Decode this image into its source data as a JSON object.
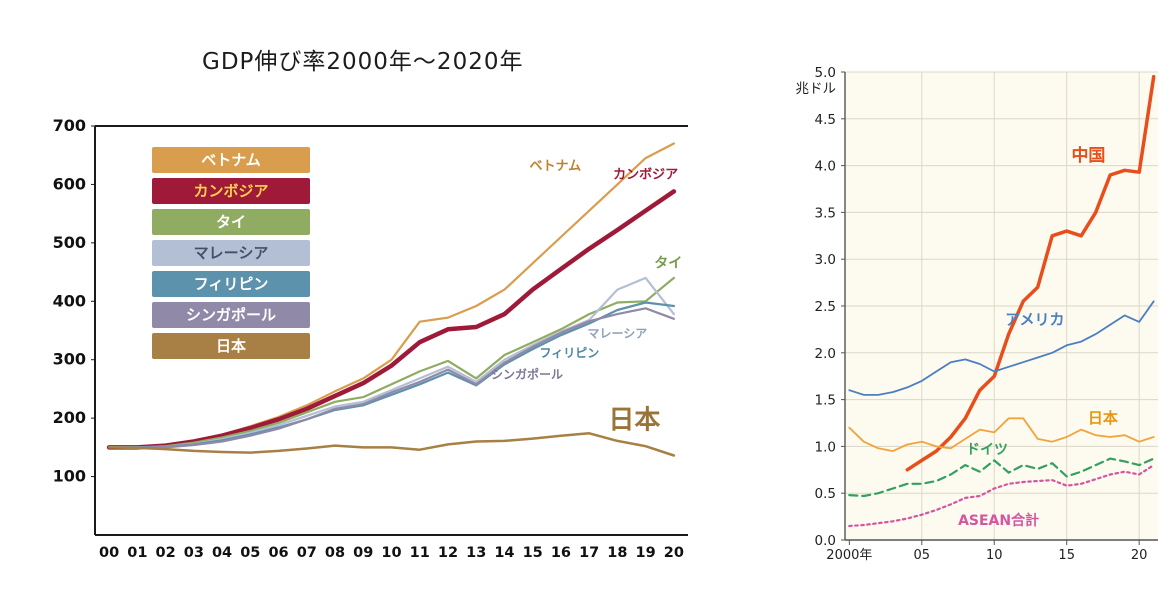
{
  "chart_data": [
    {
      "id": "gdp-growth-index",
      "type": "line",
      "title": "GDP伸び率2000年〜2020年",
      "xlabel": "",
      "ylabel": "",
      "x": [
        2000,
        2001,
        2002,
        2003,
        2004,
        2005,
        2006,
        2007,
        2008,
        2009,
        2010,
        2011,
        2012,
        2013,
        2014,
        2015,
        2016,
        2017,
        2018,
        2019,
        2020
      ],
      "xlim": [
        1999.5,
        2020.5
      ],
      "ylim": [
        0,
        700
      ],
      "xticks": [
        2000,
        2001,
        2002,
        2003,
        2004,
        2005,
        2006,
        2007,
        2008,
        2009,
        2010,
        2011,
        2012,
        2013,
        2014,
        2015,
        2016,
        2017,
        2018,
        2019,
        2020
      ],
      "xtick_labels": [
        "00",
        "01",
        "02",
        "03",
        "04",
        "05",
        "06",
        "07",
        "08",
        "09",
        "10",
        "11",
        "12",
        "13",
        "14",
        "15",
        "16",
        "17",
        "18",
        "19",
        "20"
      ],
      "yticks": [
        100,
        200,
        300,
        400,
        500,
        600,
        700
      ],
      "ytick_labels": [
        "100",
        "200",
        "300",
        "400",
        "500",
        "600",
        "700"
      ],
      "grid": false,
      "legend_position": "top-left-inside",
      "series": [
        {
          "key": "vietnam",
          "name": "ベトナム",
          "color": "#d99d4e",
          "legend_text": "#ffffff",
          "label_color": "#c08030",
          "label_at": [
            2015.8,
            625
          ],
          "label_size": 13,
          "width": 2.2,
          "values": [
            150,
            150,
            152,
            160,
            172,
            186,
            202,
            222,
            246,
            268,
            300,
            365,
            372,
            392,
            420,
            465,
            510,
            555,
            600,
            645,
            670
          ]
        },
        {
          "key": "cambodia",
          "name": "カンボジア",
          "color": "#9e1a38",
          "legend_text": "#ffd34d",
          "label_color": "#9e1a38",
          "label_at": [
            2019,
            610
          ],
          "label_size": 13,
          "width": 4.5,
          "values": [
            150,
            150,
            153,
            160,
            170,
            183,
            198,
            216,
            238,
            260,
            290,
            330,
            352,
            356,
            378,
            420,
            455,
            490,
            522,
            555,
            588
          ]
        },
        {
          "key": "thailand",
          "name": "タイ",
          "color": "#8fac62",
          "legend_text": "#ffffff",
          "label_color": "#7a9a4e",
          "label_at": [
            2019.8,
            458
          ],
          "label_size": 14,
          "width": 2.2,
          "values": [
            150,
            150,
            152,
            158,
            167,
            178,
            192,
            210,
            228,
            236,
            258,
            280,
            298,
            268,
            308,
            330,
            352,
            378,
            398,
            400,
            440
          ]
        },
        {
          "key": "malaysia",
          "name": "マレーシア",
          "color": "#b3bfd4",
          "legend_text": "#44506a",
          "label_color": "#8fa0b8",
          "label_at": [
            2018,
            338
          ],
          "label_size": 12,
          "width": 2.2,
          "values": [
            150,
            150,
            151,
            156,
            164,
            175,
            188,
            204,
            220,
            228,
            248,
            268,
            288,
            262,
            300,
            325,
            348,
            368,
            420,
            440,
            378
          ]
        },
        {
          "key": "philippines",
          "name": "フィリピン",
          "color": "#5d92ad",
          "legend_text": "#ffffff",
          "label_color": "#4e86a3",
          "label_at": [
            2016.3,
            305
          ],
          "label_size": 12,
          "width": 2.2,
          "values": [
            150,
            150,
            151,
            155,
            162,
            172,
            184,
            198,
            214,
            222,
            240,
            258,
            278,
            256,
            292,
            318,
            342,
            362,
            385,
            398,
            392
          ]
        },
        {
          "key": "singapore",
          "name": "シンガポール",
          "color": "#9089a8",
          "legend_text": "#ffffff",
          "label_color": "#7d7694",
          "label_at": [
            2014.8,
            268
          ],
          "label_size": 12,
          "width": 2.2,
          "values": [
            150,
            150,
            150,
            154,
            160,
            170,
            182,
            198,
            216,
            224,
            244,
            262,
            283,
            258,
            295,
            322,
            346,
            366,
            378,
            388,
            370
          ]
        },
        {
          "key": "japan",
          "name": "日本",
          "color": "#a87f44",
          "legend_text": "#ffffff",
          "label_color": "#9a7436",
          "label_at": [
            2018.6,
            182
          ],
          "label_size": 26,
          "width": 2.5,
          "values": [
            150,
            149,
            147,
            144,
            142,
            141,
            144,
            148,
            153,
            150,
            150,
            146,
            155,
            160,
            161,
            165,
            170,
            174,
            161,
            152,
            136
          ]
        }
      ]
    },
    {
      "id": "gdp-trillion-usd",
      "type": "line",
      "title": "",
      "xlabel": "",
      "ylabel": "兆ドル",
      "x": [
        2000,
        2001,
        2002,
        2003,
        2004,
        2005,
        2006,
        2007,
        2008,
        2009,
        2010,
        2011,
        2012,
        2013,
        2014,
        2015,
        2016,
        2017,
        2018,
        2019,
        2020,
        2021
      ],
      "xlim": [
        1999.7,
        2021.3
      ],
      "ylim": [
        0,
        5
      ],
      "xticks": [
        2000,
        2005,
        2010,
        2015,
        2020
      ],
      "xtick_labels": [
        "2000年",
        "05",
        "10",
        "15",
        "20"
      ],
      "yticks": [
        0,
        0.5,
        1,
        1.5,
        2,
        2.5,
        3,
        3.5,
        4,
        4.5,
        5
      ],
      "ytick_labels": [
        "0.0",
        "0.5",
        "1.0",
        "1.5",
        "2.0",
        "2.5",
        "3.0",
        "3.5",
        "4.0",
        "4.5",
        "5.0"
      ],
      "grid": true,
      "legend_position": "inline-labels",
      "series": [
        {
          "key": "china",
          "name": "中国",
          "color": "#e84e1b",
          "label_at": [
            2016.5,
            4.05
          ],
          "label_size": 17,
          "width": 3.5,
          "values": [
            null,
            null,
            null,
            null,
            0.75,
            0.85,
            0.95,
            1.1,
            1.3,
            1.6,
            1.75,
            2.2,
            2.55,
            2.7,
            3.25,
            3.3,
            3.25,
            3.5,
            3.9,
            3.95,
            3.93,
            4.95
          ]
        },
        {
          "key": "usa",
          "name": "アメリカ",
          "color": "#4a7fc1",
          "label_at": [
            2012.8,
            2.3
          ],
          "label_size": 15,
          "width": 1.8,
          "values": [
            1.6,
            1.55,
            1.55,
            1.58,
            1.63,
            1.7,
            1.8,
            1.9,
            1.93,
            1.88,
            1.8,
            1.85,
            1.9,
            1.95,
            2.0,
            2.08,
            2.12,
            2.2,
            2.3,
            2.4,
            2.33,
            2.55
          ]
        },
        {
          "key": "japan",
          "name": "日本",
          "color": "#f2a33c",
          "label_color": "#e8960f",
          "label_at": [
            2017.5,
            1.25
          ],
          "label_size": 15,
          "width": 1.8,
          "values": [
            1.2,
            1.05,
            0.98,
            0.95,
            1.02,
            1.05,
            1.0,
            0.98,
            1.08,
            1.18,
            1.15,
            1.3,
            1.3,
            1.08,
            1.05,
            1.1,
            1.18,
            1.12,
            1.1,
            1.12,
            1.05,
            1.1
          ]
        },
        {
          "key": "germany",
          "name": "ドイツ",
          "color": "#33a060",
          "dash": "8,5",
          "label_at": [
            2009.5,
            0.92
          ],
          "label_size": 14,
          "width": 2.2,
          "values": [
            0.48,
            0.47,
            0.5,
            0.55,
            0.6,
            0.6,
            0.63,
            0.7,
            0.8,
            0.73,
            0.85,
            0.72,
            0.8,
            0.76,
            0.82,
            0.68,
            0.73,
            0.8,
            0.87,
            0.84,
            0.8,
            0.87
          ]
        },
        {
          "key": "asean",
          "name": "ASEAN合計",
          "color": "#d455a2",
          "dash": "2.5,3.5",
          "label_at": [
            2010.3,
            0.16
          ],
          "label_size": 14,
          "width": 2.2,
          "values": [
            0.15,
            0.16,
            0.18,
            0.2,
            0.23,
            0.27,
            0.32,
            0.38,
            0.45,
            0.47,
            0.55,
            0.6,
            0.62,
            0.63,
            0.64,
            0.58,
            0.6,
            0.65,
            0.7,
            0.73,
            0.7,
            0.8
          ]
        }
      ]
    }
  ]
}
